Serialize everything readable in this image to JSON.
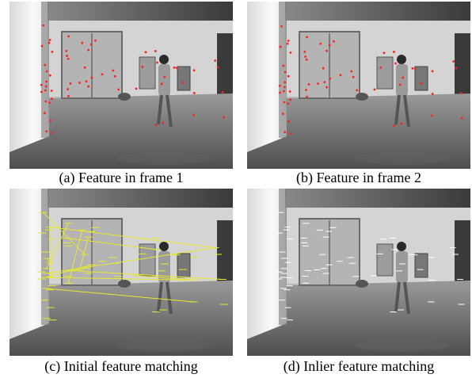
{
  "figure": {
    "panels": [
      {
        "caption": "(a) Feature in frame 1"
      },
      {
        "caption": "(b) Feature in frame 2"
      },
      {
        "caption": "(c) Initial feature matching"
      },
      {
        "caption": "(d) Inlier feature matching"
      }
    ]
  }
}
